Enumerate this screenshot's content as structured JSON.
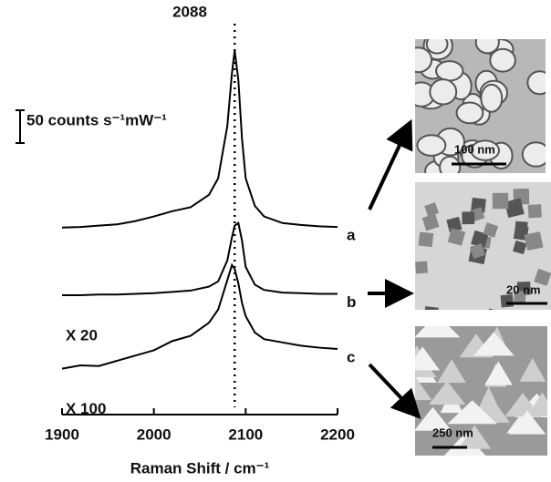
{
  "chart_data": {
    "type": "line",
    "annotation_x": 2088,
    "scale_bar": {
      "value": 50,
      "label": "50 counts s⁻¹mW⁻¹"
    },
    "xlabel": "Raman Shift / cm⁻¹",
    "xlim": [
      1900,
      2200
    ],
    "xticks": [
      1900,
      2000,
      2100,
      2200
    ],
    "ylim": [
      0,
      600
    ],
    "x": [
      1900,
      1920,
      1940,
      1960,
      1980,
      2000,
      2020,
      2040,
      2060,
      2070,
      2080,
      2085,
      2088,
      2092,
      2096,
      2100,
      2110,
      2120,
      2140,
      2160,
      2180,
      2200
    ],
    "series": [
      {
        "name": "a",
        "color": "#000000",
        "values": [
          285,
          286,
          288,
          290,
          295,
          302,
          310,
          316,
          335,
          360,
          440,
          520,
          555,
          510,
          420,
          360,
          318,
          302,
          292,
          289,
          287,
          286
        ]
      },
      {
        "name": "b",
        "color": "#000000",
        "multiplier": "X 20",
        "values": [
          182,
          182,
          183,
          183,
          184,
          185,
          187,
          189,
          195,
          203,
          235,
          270,
          288,
          292,
          265,
          225,
          198,
          190,
          186,
          185,
          184,
          184
        ]
      },
      {
        "name": "c",
        "color": "#000000",
        "multiplier": "X 100",
        "values": [
          70,
          75,
          74,
          82,
          90,
          98,
          112,
          120,
          140,
          160,
          205,
          228,
          222,
          200,
          170,
          150,
          125,
          115,
          110,
          105,
          102,
          100
        ]
      }
    ],
    "insets": [
      {
        "scale": "100 nm"
      },
      {
        "scale": "20 nm"
      },
      {
        "scale": "250 nm"
      }
    ]
  }
}
